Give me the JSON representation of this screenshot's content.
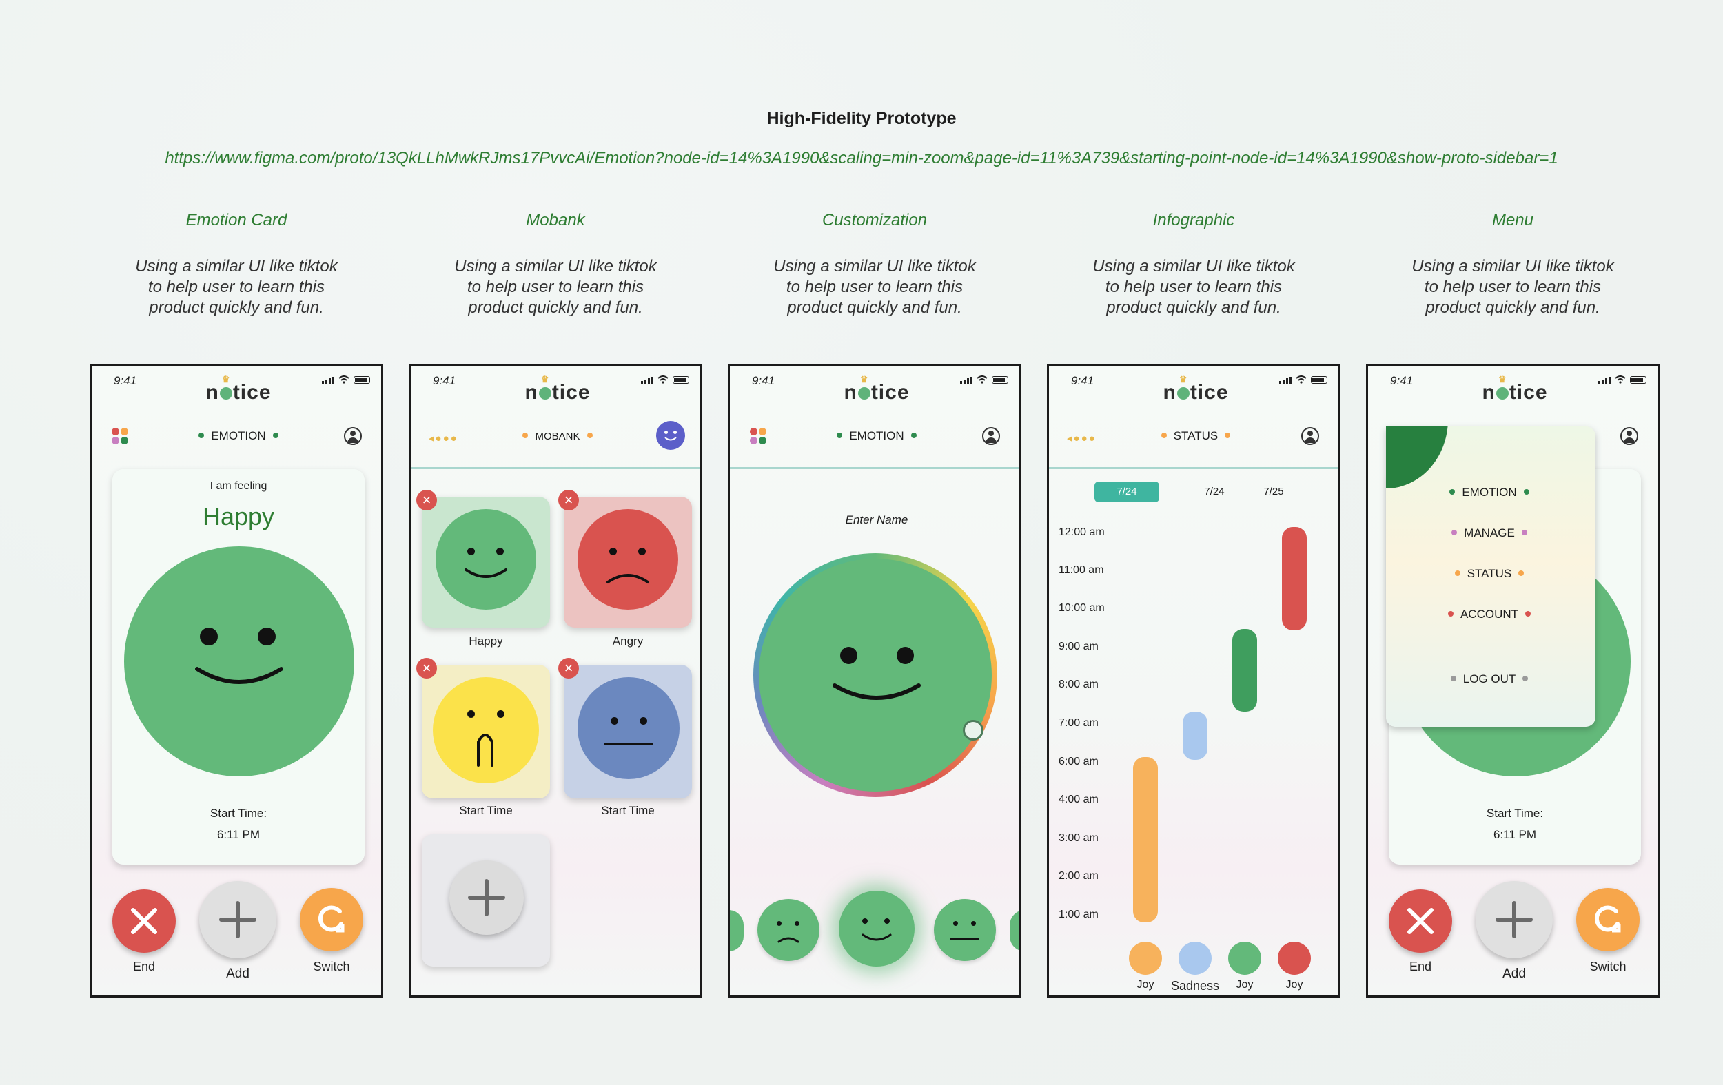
{
  "header": {
    "title": "High-Fidelity Prototype",
    "link": "https://www.figma.com/proto/13QkLLhMwkRJms17PvvcAi/Emotion?node-id=14%3A1990&scaling=min-zoom&page-id=11%3A739&starting-point-node-id=14%3A1990&show-proto-sidebar=1"
  },
  "columns": [
    {
      "title": "Emotion Card",
      "desc": [
        "Using a similar UI like tiktok",
        "to help user to learn this",
        "product quickly and fun."
      ]
    },
    {
      "title": "Mobank",
      "desc": [
        "Using a similar UI like tiktok",
        "to help user to learn this",
        "product quickly and fun."
      ]
    },
    {
      "title": "Customization",
      "desc": [
        "Using a similar UI like tiktok",
        "to help user to learn this",
        "product quickly and fun."
      ]
    },
    {
      "title": "Infographic",
      "desc": [
        "Using a similar UI like tiktok",
        "to help user to learn this",
        "product quickly and fun."
      ]
    },
    {
      "title": "Menu",
      "desc": [
        "Using a similar UI like tiktok",
        "to help user to learn this",
        "product quickly and fun."
      ]
    }
  ],
  "common": {
    "time": "9:41",
    "logo_pre": "n",
    "logo_post": "tice"
  },
  "colors": {
    "green": "#63b97a",
    "red": "#d9534f",
    "yellow": "#fbe24a",
    "blue": "#6b88bf",
    "orange": "#f7a64b",
    "lightblue": "#a9c8ee",
    "accent_green": "#2e7d32"
  },
  "phone1": {
    "nav": "EMOTION",
    "feeling_label": "I am feeling",
    "feeling": "Happy",
    "start_label": "Start Time:",
    "start_time": "6:11 PM",
    "end": "End",
    "add": "Add",
    "switch": "Switch"
  },
  "phone2": {
    "nav": "MOBANK",
    "cards": [
      "Happy",
      "Angry",
      "Start Time",
      "Start Time"
    ]
  },
  "phone3": {
    "nav": "EMOTION",
    "enter_name": "Enter Name"
  },
  "phone4": {
    "nav": "STATUS",
    "dates": [
      "7/24",
      "7/24",
      "7/25"
    ],
    "times": [
      "12:00 am",
      "11:00 am",
      "10:00 am",
      "9:00 am",
      "8:00 am",
      "7:00 am",
      "6:00 am",
      "4:00 am",
      "3:00 am",
      "2:00 am",
      "1:00 am"
    ],
    "legend": [
      "Joy",
      "Sadness",
      "Joy",
      "Joy"
    ]
  },
  "phone5": {
    "menu": [
      "EMOTION",
      "MANAGE",
      "STATUS",
      "ACCOUNT",
      "LOG OUT"
    ],
    "start_label": "Start Time:",
    "start_time": "6:11 PM",
    "end": "End",
    "add": "Add",
    "switch": "Switch"
  }
}
